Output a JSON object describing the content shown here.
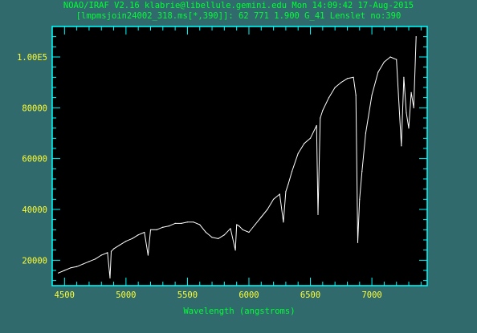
{
  "header": {
    "line1": "NOAO/IRAF V2.16 klabrie@libellule.gemini.edu Mon 14:09:42 17-Aug-2015",
    "line2": "[lmpmsjoin24002_318.ms[*,390]]: 62 771   1.900 G_41 Lenslet no:390"
  },
  "colors": {
    "background": "#316a6d",
    "plot_area": "#000000",
    "frame": "#00ffff",
    "spectrum": "#ffffff",
    "tick_labels": "#ffff33",
    "text": "#00ff33"
  },
  "chart_data": {
    "type": "line",
    "title": "",
    "xlabel": "Wavelength (angstroms)",
    "ylabel": "",
    "xlim": [
      4400,
      7450
    ],
    "ylim": [
      10000,
      112000
    ],
    "x_ticks": [
      4500,
      5000,
      5500,
      6000,
      6500,
      7000
    ],
    "x_tick_labels": [
      "4500",
      "5000",
      "5500",
      "6000",
      "6500",
      "7000"
    ],
    "y_ticks": [
      20000,
      40000,
      60000,
      80000,
      100000
    ],
    "y_tick_labels": [
      "20000",
      "40000",
      "60000",
      "80000",
      "1.00E5"
    ],
    "grid": false,
    "series": [
      {
        "x": [
          4450,
          4500,
          4550,
          4600,
          4650,
          4700,
          4750,
          4800,
          4850,
          4870,
          4880,
          4900,
          4950,
          5000,
          5050,
          5100,
          5150,
          5180,
          5200,
          5250,
          5300,
          5350,
          5400,
          5450,
          5500,
          5550,
          5600,
          5650,
          5700,
          5750,
          5800,
          5850,
          5890,
          5900,
          5920,
          5950,
          6000,
          6050,
          6100,
          6150,
          6200,
          6250,
          6280,
          6300,
          6320,
          6350,
          6400,
          6450,
          6500,
          6550,
          6562,
          6580,
          6600,
          6650,
          6700,
          6750,
          6800,
          6850,
          6870,
          6885,
          6900,
          6920,
          6950,
          7000,
          7050,
          7100,
          7150,
          7200,
          7240,
          7260,
          7280,
          7300,
          7320,
          7340,
          7360
        ],
        "y": [
          15000,
          16000,
          17000,
          17500,
          18500,
          19500,
          20500,
          22000,
          23000,
          13000,
          23500,
          24500,
          26000,
          27500,
          28500,
          30000,
          31000,
          22000,
          32000,
          32000,
          33000,
          33500,
          34500,
          34500,
          35000,
          35000,
          34000,
          31000,
          29000,
          28500,
          30000,
          32500,
          24000,
          34000,
          33500,
          32000,
          31000,
          34000,
          37000,
          40000,
          44000,
          46000,
          35000,
          47000,
          50000,
          55000,
          62000,
          66000,
          68000,
          73000,
          38000,
          76000,
          79000,
          84000,
          88000,
          90000,
          91500,
          92000,
          85000,
          27000,
          44000,
          55000,
          70000,
          85000,
          94000,
          98000,
          100000,
          99000,
          65000,
          92000,
          78000,
          72000,
          86000,
          80000,
          108000
        ]
      }
    ]
  }
}
